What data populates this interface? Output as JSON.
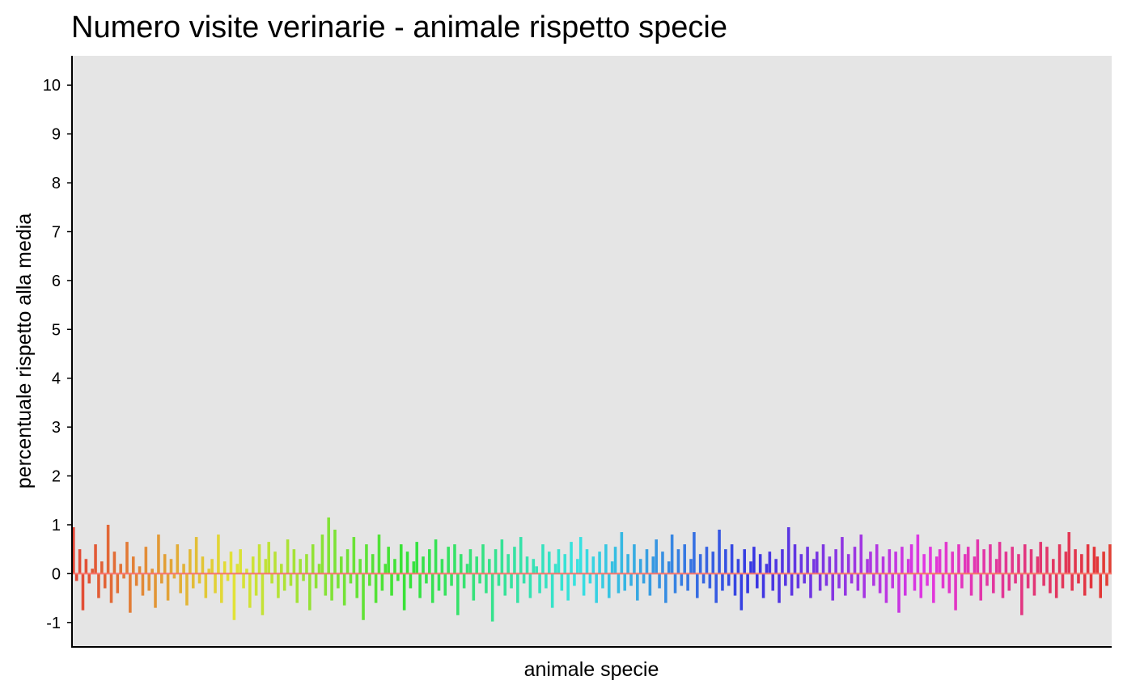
{
  "chart_data": {
    "type": "bar",
    "title": "Numero visite verinarie - animale rispetto specie",
    "xlabel": "animale specie",
    "ylabel": "percentuale rispetto alla media",
    "ylim": [
      -1.5,
      10.6
    ],
    "yticks": [
      {
        "value": -1,
        "label": "-1"
      },
      {
        "value": 0,
        "label": "0"
      },
      {
        "value": 1,
        "label": "1"
      },
      {
        "value": 2,
        "label": "2"
      },
      {
        "value": 3,
        "label": "3"
      },
      {
        "value": 4,
        "label": "4"
      },
      {
        "value": 5,
        "label": "5"
      },
      {
        "value": 6,
        "label": "6"
      },
      {
        "value": 7,
        "label": "7"
      },
      {
        "value": 8,
        "label": "8"
      },
      {
        "value": 9,
        "label": "9"
      },
      {
        "value": 10,
        "label": "10"
      }
    ],
    "grid": false,
    "legend": "none",
    "colors": {
      "panel": "#e5e5e5",
      "axis": "#000000",
      "reference_line": "#f8766d",
      "hue_range": "ggplot2 rainbow (red → orange → green → cyan → blue → purple → magenta → red)"
    },
    "reference_line": {
      "value": 0
    },
    "series_summary": {
      "visual_range": [
        -1.0,
        1.15
      ]
    },
    "values": [
      0.95,
      -0.15,
      0.5,
      -0.75,
      0.3,
      -0.2,
      0.1,
      0.6,
      -0.5,
      0.25,
      -0.3,
      1.0,
      -0.6,
      0.45,
      -0.4,
      0.2,
      -0.1,
      0.65,
      -0.8,
      0.35,
      -0.25,
      0.15,
      -0.45,
      0.55,
      -0.35,
      0.1,
      -0.7,
      0.8,
      -0.2,
      0.4,
      -0.55,
      0.3,
      -0.1,
      0.6,
      -0.4,
      0.2,
      -0.65,
      0.5,
      -0.3,
      0.75,
      -0.2,
      0.35,
      -0.5,
      0.1,
      0.3,
      -0.4,
      0.8,
      -0.6,
      0.25,
      -0.15,
      0.45,
      -0.95,
      0.2,
      0.5,
      -0.3,
      0.1,
      -0.7,
      0.35,
      -0.45,
      0.6,
      -0.85,
      0.3,
      0.65,
      -0.2,
      0.45,
      -0.5,
      0.2,
      -0.35,
      0.7,
      -0.25,
      0.5,
      -0.6,
      0.3,
      -0.15,
      0.4,
      -0.75,
      0.6,
      -0.3,
      0.2,
      0.8,
      -0.45,
      1.15,
      -0.55,
      0.9,
      -0.3,
      0.35,
      -0.65,
      0.5,
      -0.2,
      0.75,
      -0.5,
      0.3,
      -0.95,
      0.6,
      -0.25,
      0.4,
      -0.6,
      0.8,
      -0.35,
      0.2,
      0.55,
      -0.45,
      0.3,
      -0.15,
      0.6,
      -0.75,
      0.45,
      -0.3,
      0.25,
      0.65,
      -0.5,
      0.35,
      -0.2,
      0.5,
      -0.6,
      0.7,
      -0.35,
      0.3,
      -0.45,
      0.55,
      -0.25,
      0.6,
      -0.85,
      0.4,
      -0.3,
      0.2,
      0.5,
      -0.55,
      0.35,
      -0.2,
      0.6,
      -0.4,
      0.3,
      -0.98,
      0.5,
      -0.25,
      0.7,
      -0.45,
      0.4,
      -0.3,
      0.55,
      -0.6,
      0.75,
      -0.2,
      0.35,
      -0.5,
      0.3,
      0.15,
      -0.4,
      0.6,
      -0.3,
      0.45,
      -0.7,
      0.2,
      0.5,
      -0.35,
      0.4,
      -0.55,
      0.65,
      -0.25,
      0.3,
      0.75,
      -0.45,
      0.5,
      -0.2,
      0.35,
      -0.6,
      0.45,
      -0.3,
      0.6,
      -0.5,
      0.25,
      0.55,
      -0.4,
      0.85,
      -0.35,
      0.4,
      -0.25,
      0.6,
      -0.55,
      0.3,
      -0.2,
      0.5,
      -0.45,
      0.35,
      0.7,
      -0.3,
      0.45,
      -0.6,
      0.25,
      0.8,
      -0.4,
      0.5,
      -0.25,
      0.6,
      -0.35,
      0.3,
      0.85,
      -0.5,
      0.4,
      -0.2,
      0.55,
      -0.3,
      0.45,
      -0.6,
      0.9,
      -0.35,
      0.5,
      -0.25,
      0.6,
      -0.45,
      0.3,
      -0.75,
      0.5,
      -0.4,
      0.25,
      0.55,
      -0.3,
      0.4,
      -0.5,
      0.2,
      0.45,
      -0.35,
      0.3,
      -0.6,
      0.5,
      -0.25,
      0.95,
      -0.45,
      0.6,
      -0.3,
      0.4,
      -0.2,
      0.55,
      -0.5,
      0.3,
      0.45,
      -0.35,
      0.6,
      -0.25,
      0.35,
      -0.55,
      0.5,
      -0.3,
      0.75,
      -0.45,
      0.4,
      -0.2,
      0.55,
      -0.35,
      0.8,
      -0.5,
      0.3,
      0.45,
      -0.25,
      0.6,
      -0.4,
      0.35,
      -0.6,
      0.5,
      -0.3,
      0.45,
      -0.8,
      0.55,
      -0.45,
      0.3,
      0.6,
      -0.35,
      0.8,
      -0.5,
      0.4,
      -0.25,
      0.55,
      -0.6,
      0.35,
      0.5,
      -0.3,
      0.65,
      -0.4,
      0.45,
      -0.75,
      0.6,
      -0.3,
      0.4,
      0.55,
      -0.45,
      0.35,
      0.7,
      -0.55,
      0.5,
      -0.25,
      0.6,
      -0.4,
      0.3,
      0.65,
      -0.5,
      0.45,
      -0.35,
      0.55,
      -0.2,
      0.4,
      -0.85,
      0.6,
      -0.3,
      0.5,
      -0.45,
      0.35,
      0.65,
      -0.25,
      0.55,
      -0.4,
      0.3,
      -0.5,
      0.6,
      -0.3,
      0.45,
      0.85,
      -0.35,
      0.5,
      -0.2,
      0.4,
      -0.45,
      0.6,
      -0.3,
      0.55,
      0.35,
      -0.5,
      0.45,
      -0.25,
      0.6
    ]
  }
}
